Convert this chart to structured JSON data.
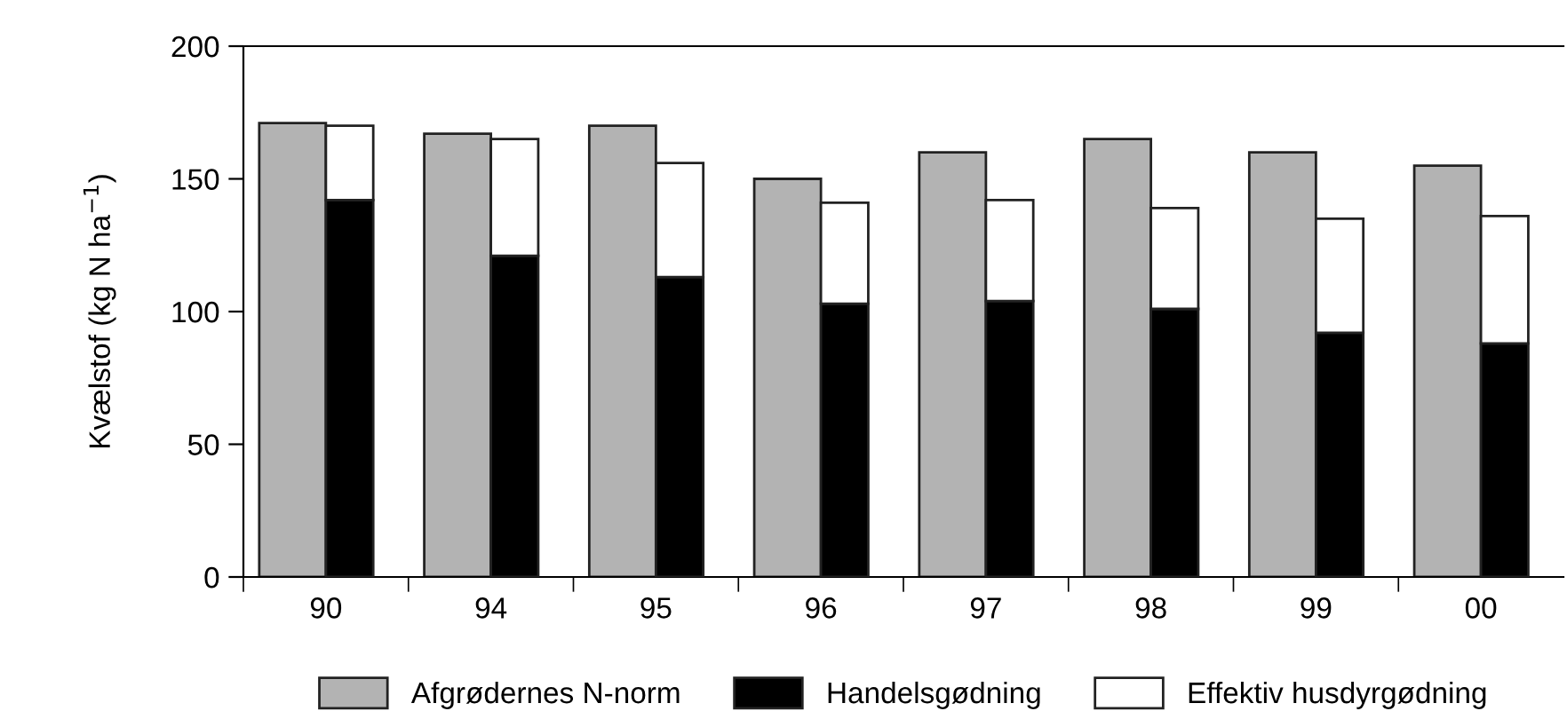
{
  "chart_data": [
    {
      "type": "bar",
      "ylabel": "Kvælstof (kg N ha$^{−1}$)",
      "categories": [
        "90",
        "94",
        "95",
        "96",
        "97",
        "98",
        "99",
        "00"
      ],
      "series": [
        {
          "name": "Afgrødernes N-norm",
          "color": "#b3b3b3",
          "values": [
            171,
            167,
            170,
            150,
            160,
            165,
            160,
            155
          ]
        }
      ],
      "ylim": [
        0,
        200
      ],
      "yticks": [
        0,
        50,
        100,
        150,
        200
      ],
      "grid": false,
      "legend": "bottom"
    },
    {
      "type": "bar",
      "stacked": true,
      "tick_labels": false,
      "categories": [
        "90",
        "94",
        "95",
        "96",
        "97",
        "98",
        "99",
        "00"
      ],
      "series": [
        {
          "name": "Handelsgødning",
          "color": "#000000",
          "values": [
            142,
            121,
            113,
            103,
            104,
            101,
            92,
            88
          ]
        },
        {
          "name": "Effektiv husdyrgødning",
          "color": "#ffffff",
          "values": [
            28,
            44,
            43,
            38,
            38,
            38,
            43,
            48
          ]
        }
      ],
      "ylim": [
        0,
        200
      ],
      "grid": false,
      "legend": "bottom"
    }
  ]
}
